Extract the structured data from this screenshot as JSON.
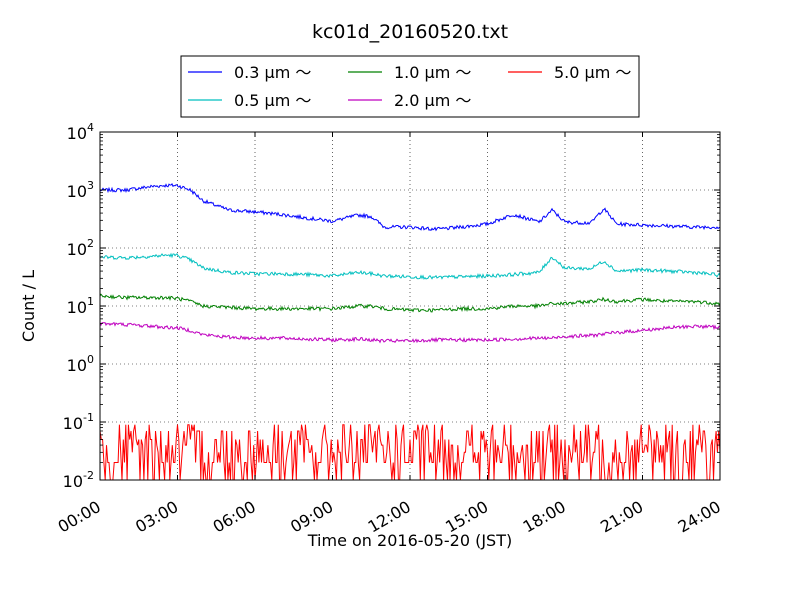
{
  "chart_data": {
    "type": "line",
    "title": "kc01d_20160520.txt",
    "xlabel": "Time on 2016-05-20 (JST)",
    "ylabel": "Count / L",
    "yscale": "log",
    "xlim": [
      "00:00",
      "24:00"
    ],
    "ylim": [
      0.01,
      10000
    ],
    "grid": true,
    "legend_position": "top",
    "x_tick_labels": [
      "00:00",
      "03:00",
      "06:00",
      "09:00",
      "12:00",
      "15:00",
      "18:00",
      "21:00",
      "24:00"
    ],
    "y_ticks": [
      {
        "value": 0.01,
        "base": "10",
        "exp": "-2"
      },
      {
        "value": 0.1,
        "base": "10",
        "exp": "-1"
      },
      {
        "value": 1,
        "base": "10",
        "exp": "0"
      },
      {
        "value": 10,
        "base": "10",
        "exp": "1"
      },
      {
        "value": 100,
        "base": "10",
        "exp": "2"
      },
      {
        "value": 1000,
        "base": "10",
        "exp": "3"
      },
      {
        "value": 10000,
        "base": "10",
        "exp": "4"
      }
    ],
    "x_hours": [
      0,
      1,
      2,
      2.5,
      3,
      3.5,
      4,
      5,
      6,
      7,
      8,
      9,
      10,
      10.5,
      11,
      12,
      13,
      14,
      15,
      16,
      17,
      17.5,
      18,
      19,
      19.5,
      20,
      21,
      22,
      23,
      24
    ],
    "series": [
      {
        "name": "0.3 μm ～",
        "color": "#0000ff",
        "values": [
          1000,
          1000,
          1150,
          1200,
          1200,
          1000,
          650,
          450,
          420,
          380,
          330,
          290,
          370,
          350,
          230,
          230,
          210,
          230,
          260,
          380,
          280,
          450,
          280,
          270,
          480,
          260,
          250,
          240,
          230,
          230
        ]
      },
      {
        "name": "0.5 μm ～",
        "color": "#00bfbf",
        "values": [
          70,
          68,
          72,
          75,
          75,
          62,
          45,
          38,
          36,
          36,
          35,
          33,
          38,
          36,
          33,
          32,
          31,
          32,
          33,
          35,
          38,
          70,
          45,
          44,
          60,
          40,
          42,
          40,
          38,
          34
        ]
      },
      {
        "name": "1.0 μm ～",
        "color": "#008000",
        "values": [
          15,
          14,
          14,
          14,
          13.5,
          12,
          10,
          9.5,
          9,
          9,
          9,
          9,
          10,
          10,
          9,
          8.5,
          8.5,
          9,
          9,
          10,
          10,
          11,
          11,
          12,
          13,
          12,
          13,
          12,
          12,
          11
        ]
      },
      {
        "name": "2.0 μm ～",
        "color": "#bf00bf",
        "values": [
          5,
          4.8,
          4.5,
          4.3,
          4.2,
          3.8,
          3.2,
          2.9,
          2.8,
          2.8,
          2.7,
          2.6,
          2.7,
          2.6,
          2.5,
          2.5,
          2.6,
          2.6,
          2.6,
          2.7,
          2.8,
          2.8,
          3,
          3.1,
          3.3,
          3.5,
          3.8,
          4.2,
          4.5,
          4.3
        ]
      },
      {
        "name": "5.0 μm ～",
        "color": "#ff0000",
        "values": [
          0.04,
          0.02,
          0.04,
          0.03,
          0.02,
          0.02,
          0.04,
          0.02,
          0.03,
          0.02,
          0.04,
          0.02,
          0.03,
          0.02,
          0.04,
          0.02,
          0.03,
          0.02,
          0.04,
          0.02,
          0.03,
          0.02,
          0.04,
          0.02,
          0.03,
          0.02,
          0.04,
          0.02,
          0.03,
          0.02
        ]
      }
    ]
  }
}
